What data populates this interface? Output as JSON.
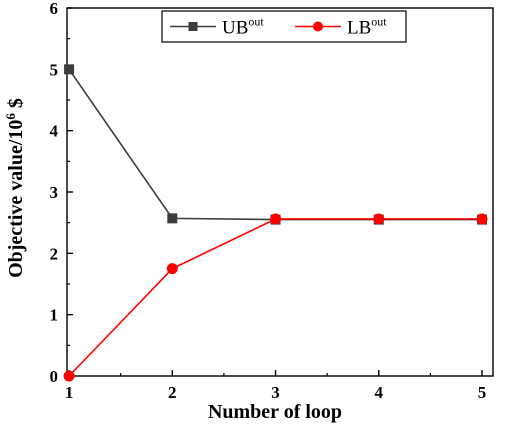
{
  "chart_data": {
    "type": "line",
    "x": [
      1,
      2,
      3,
      4,
      5
    ],
    "xlabel": "Number of loop",
    "ylabel": {
      "base": "Objective value/10",
      "sup": "6",
      "unit": " $"
    },
    "xlim": [
      0.98,
      5.0
    ],
    "ylim": [
      0,
      6
    ],
    "xticks": [
      "1",
      "2",
      "3",
      "4",
      "5"
    ],
    "yticks": [
      "0",
      "1",
      "2",
      "3",
      "4",
      "5",
      "6"
    ],
    "grid": false,
    "legend_position": "top-center",
    "series": [
      {
        "name": "UB",
        "name_sup": "out",
        "color": "#3c3c3c",
        "marker": "square",
        "values": [
          5.0,
          2.57,
          2.55,
          2.55,
          2.55
        ]
      },
      {
        "name": "LB",
        "name_sup": "out",
        "color": "#ff0000",
        "marker": "circle",
        "values": [
          0.0,
          1.75,
          2.56,
          2.56,
          2.56
        ]
      }
    ]
  }
}
